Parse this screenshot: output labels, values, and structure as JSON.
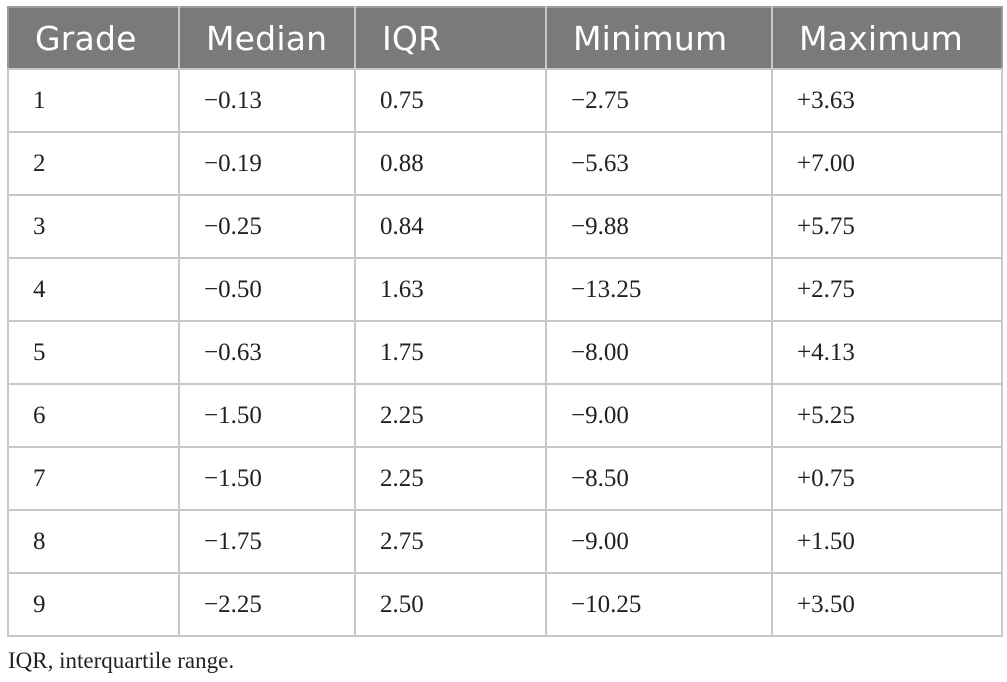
{
  "table": {
    "headers": [
      "Grade",
      "Median",
      "IQR",
      "Minimum",
      "Maximum"
    ],
    "rows": [
      [
        "1",
        "−0.13",
        "0.75",
        "−2.75",
        "+3.63"
      ],
      [
        "2",
        "−0.19",
        "0.88",
        "−5.63",
        "+7.00"
      ],
      [
        "3",
        "−0.25",
        "0.84",
        "−9.88",
        "+5.75"
      ],
      [
        "4",
        "−0.50",
        "1.63",
        "−13.25",
        "+2.75"
      ],
      [
        "5",
        "−0.63",
        "1.75",
        "−8.00",
        "+4.13"
      ],
      [
        "6",
        "−1.50",
        "2.25",
        "−9.00",
        "+5.25"
      ],
      [
        "7",
        "−1.50",
        "2.25",
        "−8.50",
        "+0.75"
      ],
      [
        "8",
        "−1.75",
        "2.75",
        "−9.00",
        "+1.50"
      ],
      [
        "9",
        "−2.25",
        "2.50",
        "−10.25",
        "+3.50"
      ]
    ]
  },
  "footnote": "IQR, interquartile range.",
  "colors": {
    "header_background": "#7a7a7a",
    "header_text": "#ffffff",
    "grid_line": "#c8c8c8"
  }
}
